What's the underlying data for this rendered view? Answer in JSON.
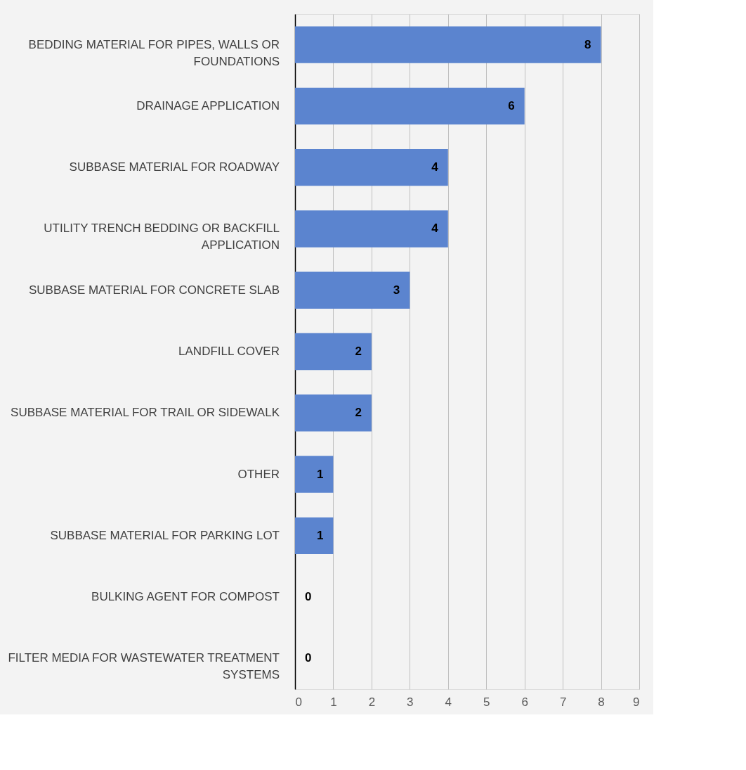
{
  "chart_data": {
    "type": "bar",
    "orientation": "horizontal",
    "categories": [
      "BEDDING MATERIAL FOR PIPES, WALLS OR FOUNDATIONS",
      "DRAINAGE APPLICATION",
      "SUBBASE MATERIAL FOR ROADWAY",
      "UTILITY TRENCH BEDDING OR BACKFILL APPLICATION",
      "SUBBASE MATERIAL FOR CONCRETE SLAB",
      "LANDFILL COVER",
      "SUBBASE MATERIAL FOR TRAIL OR SIDEWALK",
      "OTHER",
      "SUBBASE MATERIAL FOR PARKING LOT",
      "BULKING AGENT FOR COMPOST",
      "FILTER MEDIA FOR WASTEWATER TREATMENT SYSTEMS"
    ],
    "values": [
      8,
      6,
      4,
      4,
      3,
      2,
      2,
      1,
      1,
      0,
      0
    ],
    "color": "#5b84cf",
    "xlim": [
      0,
      9
    ],
    "xticks": [
      0,
      1,
      2,
      3,
      4,
      5,
      6,
      7,
      8,
      9
    ],
    "grid": "x",
    "data_labels": true
  }
}
